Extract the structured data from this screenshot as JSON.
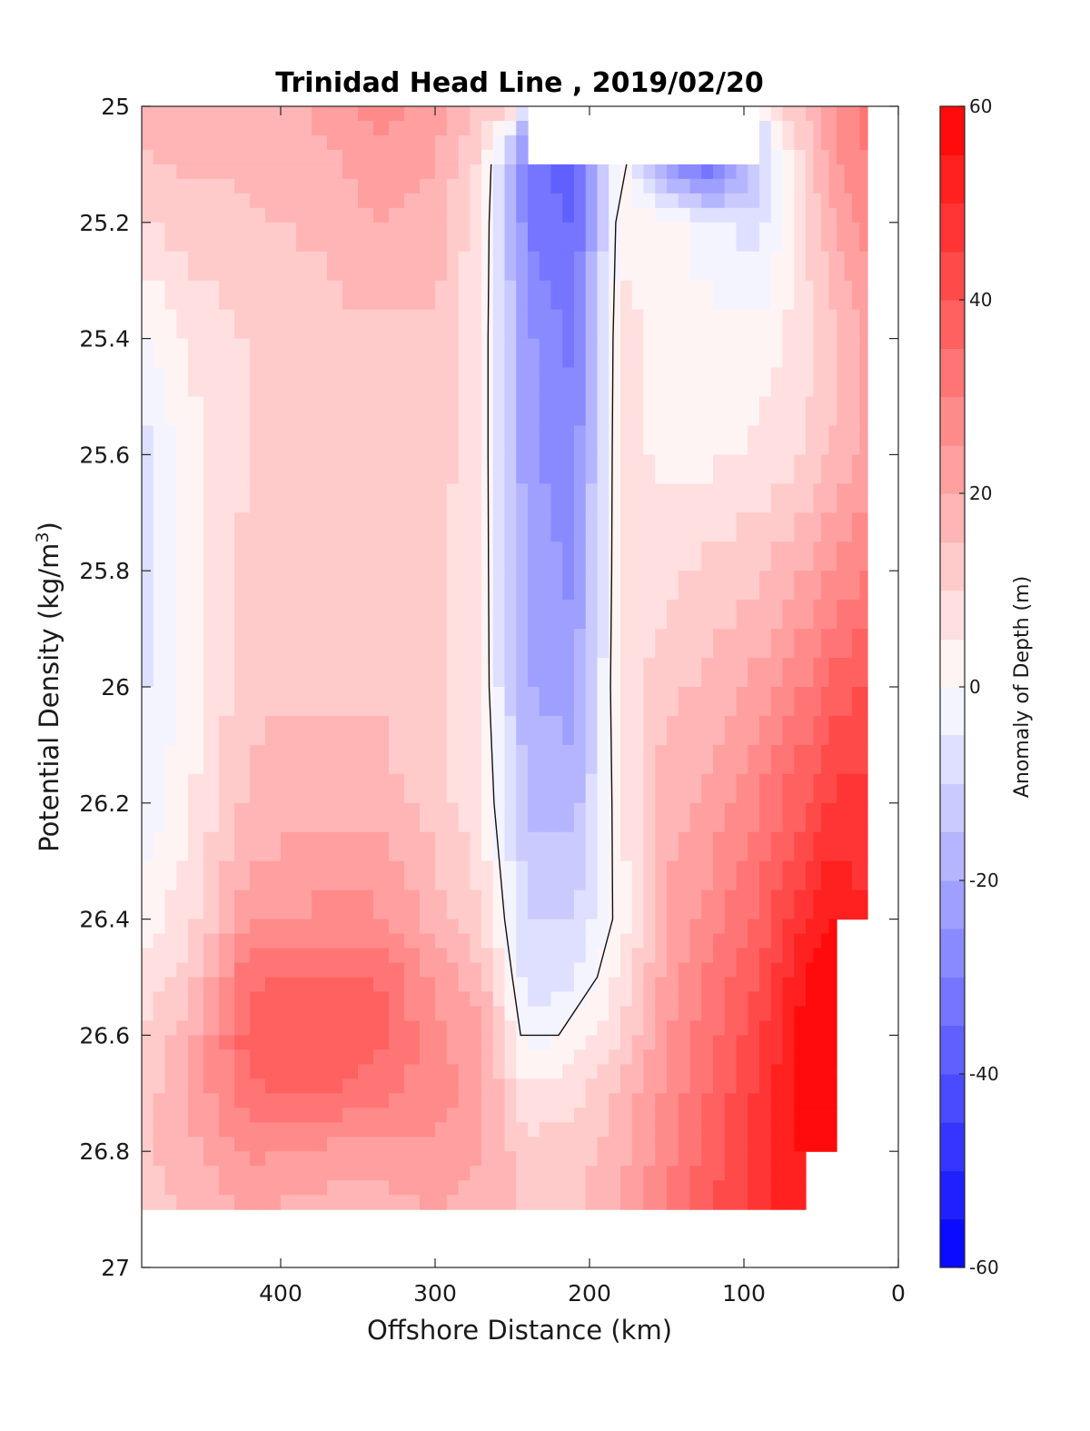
{
  "chart_data": {
    "type": "heatmap",
    "subtype": "filled-contour",
    "title": "Trinidad Head Line , 2019/02/20",
    "xlabel": "Offshore Distance (km)",
    "ylabel": "Potential Density (kg/m",
    "ylabel_superscript": "3",
    "ylabel_suffix": ")",
    "colorbar_label": "Anomaly of Depth (m)",
    "xlim": [
      490,
      0
    ],
    "ylim": [
      27,
      25
    ],
    "y_reversed": true,
    "x_reversed": true,
    "xticks": [
      400,
      300,
      200,
      100,
      0
    ],
    "yticks": [
      25,
      25.2,
      25.4,
      25.6,
      25.8,
      26,
      26.2,
      26.4,
      26.6,
      26.8,
      27
    ],
    "ytick_labels": [
      "25",
      "25.2",
      "25.4",
      "25.6",
      "25.8",
      "26",
      "26.2",
      "26.4",
      "26.6",
      "26.8",
      "27"
    ],
    "colorbar_ticks": [
      60,
      40,
      20,
      0,
      -20,
      -40,
      -60
    ],
    "colorbar_range": [
      -60,
      60
    ],
    "colorbar_levels": 24,
    "zero_contour": true,
    "grid": false,
    "colors": {
      "positive": "#ff0000",
      "negative": "#0000ff",
      "zero": "#ffffff"
    },
    "x": [
      490,
      460,
      420,
      380,
      340,
      300,
      270,
      240,
      210,
      180,
      150,
      120,
      90,
      60,
      40,
      20
    ],
    "y": [
      25.0,
      25.1,
      25.2,
      25.4,
      25.6,
      25.8,
      26.0,
      26.2,
      26.4,
      26.5,
      26.6,
      26.7,
      26.8,
      26.9
    ],
    "z": [
      [
        18,
        20,
        18,
        20,
        28,
        22,
        14,
        null,
        null,
        null,
        null,
        null,
        null,
        14,
        26,
        32
      ],
      [
        14,
        16,
        16,
        18,
        22,
        20,
        8,
        -30,
        -40,
        4,
        -26,
        -36,
        -12,
        12,
        24,
        30
      ],
      [
        10,
        12,
        14,
        16,
        20,
        18,
        6,
        -30,
        -36,
        4,
        2,
        -4,
        -8,
        10,
        20,
        28
      ],
      [
        -2,
        6,
        10,
        12,
        14,
        14,
        4,
        -24,
        -32,
        6,
        4,
        2,
        2,
        8,
        14,
        22
      ],
      [
        -8,
        2,
        10,
        12,
        12,
        14,
        4,
        -24,
        -28,
        6,
        4,
        4,
        6,
        10,
        16,
        22
      ],
      [
        -8,
        2,
        12,
        12,
        12,
        12,
        4,
        -22,
        -26,
        6,
        8,
        12,
        14,
        20,
        26,
        30
      ],
      [
        -6,
        2,
        14,
        14,
        14,
        12,
        4,
        -20,
        -22,
        6,
        14,
        16,
        22,
        30,
        38,
        40
      ],
      [
        -4,
        4,
        16,
        18,
        18,
        12,
        6,
        -16,
        -18,
        4,
        18,
        22,
        30,
        40,
        46,
        46
      ],
      [
        2,
        8,
        24,
        26,
        26,
        18,
        10,
        -10,
        -10,
        2,
        20,
        28,
        36,
        50,
        56,
        null
      ],
      [
        6,
        12,
        34,
        36,
        36,
        24,
        16,
        -8,
        -6,
        6,
        22,
        32,
        40,
        56,
        60,
        null
      ],
      [
        10,
        18,
        38,
        40,
        38,
        26,
        22,
        -4,
        2,
        10,
        24,
        34,
        44,
        58,
        60,
        null
      ],
      [
        12,
        20,
        34,
        36,
        32,
        28,
        22,
        6,
        8,
        16,
        26,
        36,
        46,
        58,
        58,
        null
      ],
      [
        14,
        18,
        26,
        24,
        22,
        24,
        20,
        12,
        12,
        18,
        28,
        38,
        48,
        56,
        null,
        null
      ],
      [
        12,
        16,
        20,
        18,
        18,
        20,
        18,
        14,
        14,
        20,
        30,
        40,
        48,
        54,
        null,
        null
      ]
    ]
  }
}
